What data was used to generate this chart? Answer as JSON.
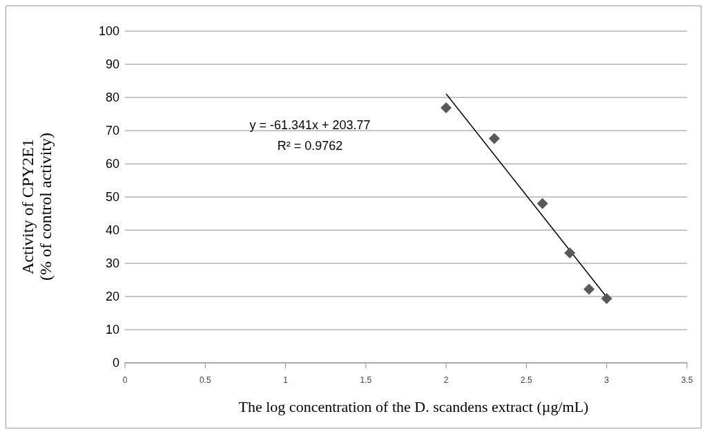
{
  "chart_data": {
    "type": "scatter",
    "xlabel": "The log concentration of the D. scandens extract (µg/mL)",
    "ylabel": "Activity of  CPY2E1\n(% of control activity)",
    "annotations": [
      "y = -61.341x + 203.77",
      "R² = 0.9762"
    ],
    "x": [
      2,
      2.3,
      2.6,
      2.77,
      2.89,
      3
    ],
    "series": [
      {
        "color": "#595959",
        "values": [
          76.9,
          67.6,
          48.0,
          33.1,
          22.2,
          19.4
        ],
        "marker": "diamond"
      },
      {
        "type": "line",
        "color": "#000000",
        "x": [
          2,
          3
        ],
        "values": [
          81.1,
          19.8
        ],
        "marker": "none",
        "line_style": "solid"
      }
    ],
    "xlim": [
      0,
      3.5
    ],
    "xticks": [
      0,
      0.5,
      1,
      1.5,
      2,
      2.5,
      3,
      3.5
    ],
    "ylim": [
      0,
      100
    ],
    "yticks": [
      0,
      10,
      20,
      30,
      40,
      50,
      60,
      70,
      80,
      90,
      100
    ],
    "grid": "y"
  }
}
